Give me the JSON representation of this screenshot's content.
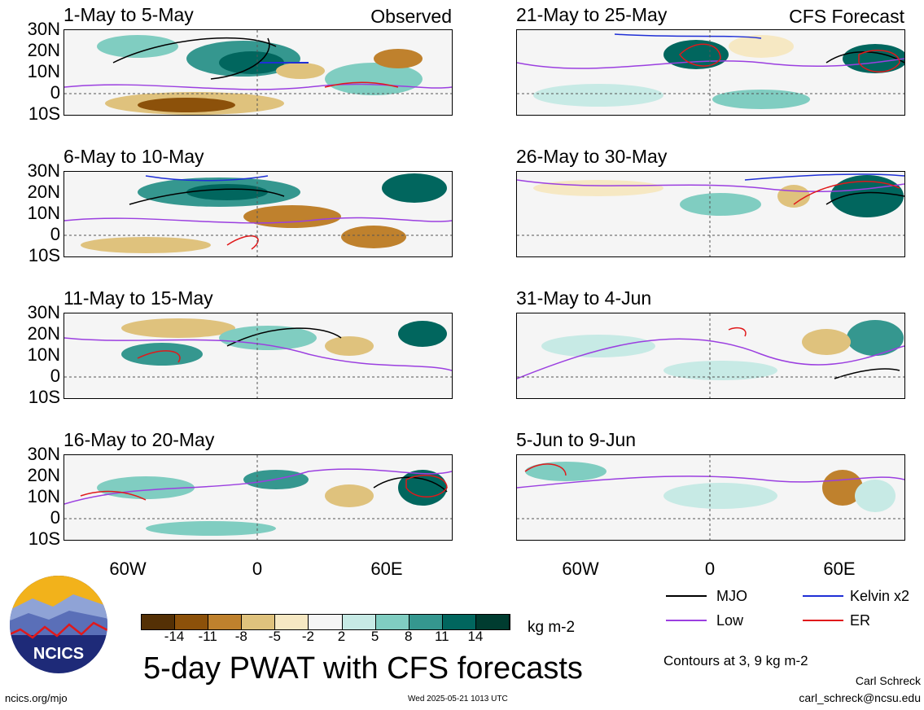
{
  "left_column": {
    "header_right": "Observed",
    "panels": [
      {
        "title": "1-May to 5-May"
      },
      {
        "title": "6-May to 10-May"
      },
      {
        "title": "11-May to 15-May"
      },
      {
        "title": "16-May to 20-May"
      }
    ]
  },
  "right_column": {
    "header_right": "CFS Forecast",
    "panels": [
      {
        "title": "21-May to 25-May"
      },
      {
        "title": "26-May to 30-May"
      },
      {
        "title": "31-May to 4-Jun"
      },
      {
        "title": "5-Jun to 9-Jun"
      }
    ]
  },
  "lat_labels": [
    "30N",
    "20N",
    "10N",
    "0",
    "10S"
  ],
  "lon_labels": [
    "60W",
    "0",
    "60E"
  ],
  "legend": {
    "mjo": "MJO",
    "kelvin": "Kelvin x2",
    "low": "Low",
    "er": "ER",
    "colors": {
      "mjo": "#000000",
      "kelvin": "#1f2fd6",
      "low": "#9b3fe0",
      "er": "#e0191b"
    },
    "contours_note": "Contours at 3, 9 kg m-2"
  },
  "colorbar": {
    "ticks": [
      "-14",
      "-11",
      "-8",
      "-5",
      "-2",
      "2",
      "5",
      "8",
      "11",
      "14"
    ],
    "colors": [
      "#543005",
      "#8c510a",
      "#bf812d",
      "#dfc27d",
      "#f6e8c3",
      "#f5f5f5",
      "#c7eae5",
      "#80cdc1",
      "#35978f",
      "#01665e",
      "#003c30"
    ],
    "unit": "kg m-2"
  },
  "logo_text": "NCICS",
  "main_title": "5-day PWAT with CFS forecasts",
  "footer": {
    "url": "ncics.org/mjo",
    "timestamp": "Wed 2025-05-21 1013 UTC",
    "author": "Carl Schreck",
    "email": "carl_schreck@ncsu.edu"
  }
}
